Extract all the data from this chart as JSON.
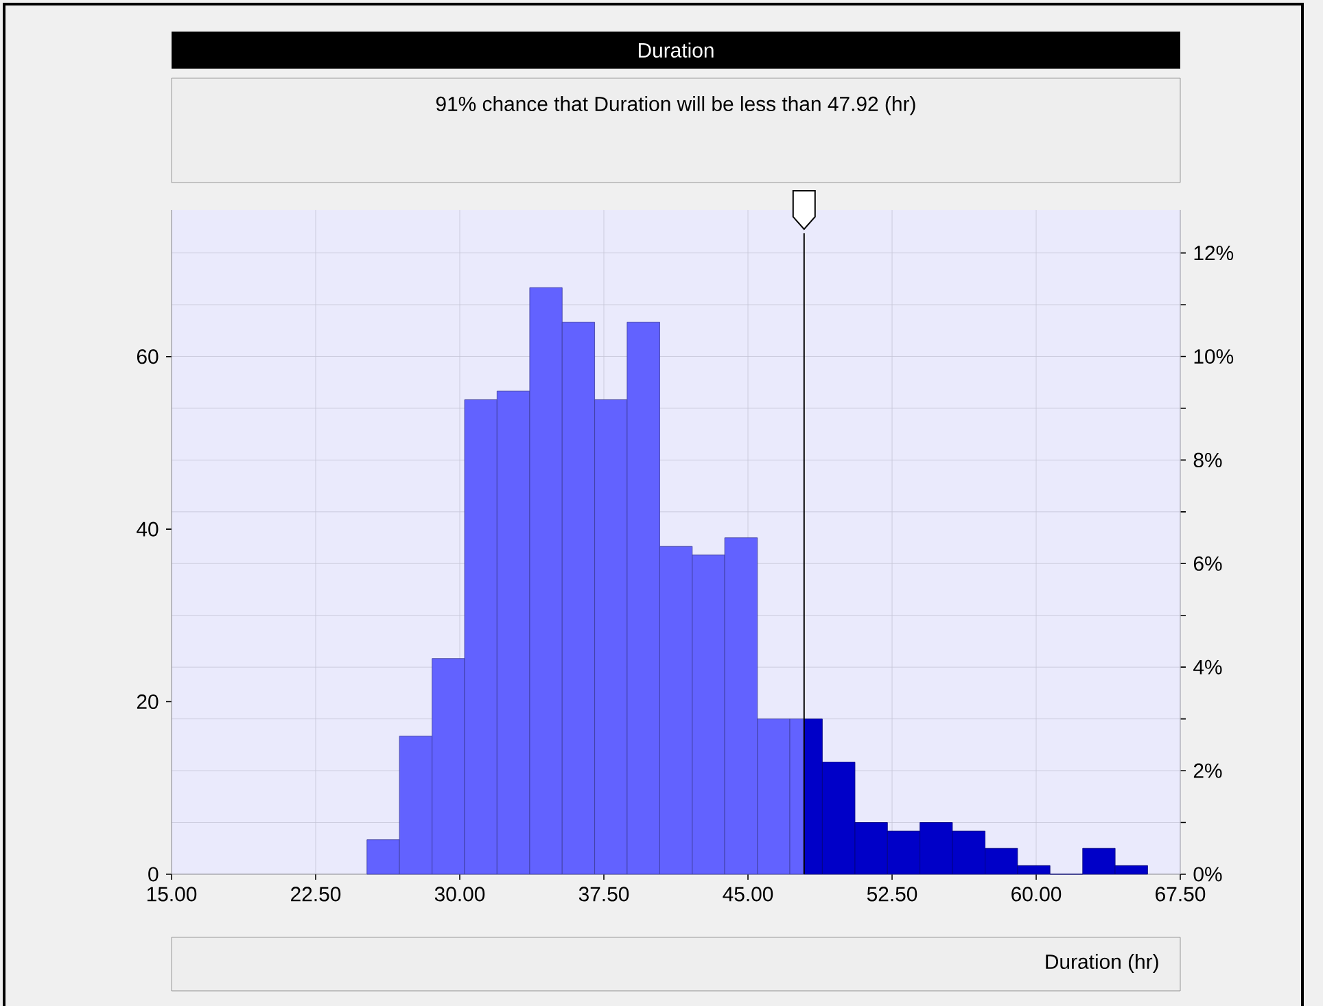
{
  "chart_data": {
    "type": "histogram",
    "title": "Duration",
    "subtitle": "91% chance that Duration will be less than 47.92 (hr)",
    "xlabel": "Duration (hr)",
    "bins": [
      25.17,
      26.86,
      28.56,
      30.25,
      31.94,
      33.64,
      35.33,
      37.02,
      38.71,
      40.41,
      42.1,
      43.79,
      45.49,
      47.18,
      47.92,
      48.87,
      50.57,
      52.26,
      53.95,
      55.64,
      57.34,
      59.03,
      60.72,
      62.42,
      64.11,
      65.8
    ],
    "values": [
      4,
      16,
      25,
      55,
      56,
      68,
      64,
      55,
      64,
      38,
      37,
      39,
      18,
      18,
      18,
      13,
      6,
      5,
      6,
      5,
      3,
      1,
      0,
      3,
      1
    ],
    "colors": [
      "#6262ff",
      "#6262ff",
      "#6262ff",
      "#6262ff",
      "#6262ff",
      "#6262ff",
      "#6262ff",
      "#6262ff",
      "#6262ff",
      "#6262ff",
      "#6262ff",
      "#6262ff",
      "#6262ff",
      "#6262ff",
      "#0000c8",
      "#0000c8",
      "#0000c8",
      "#0000c8",
      "#0000c8",
      "#0000c8",
      "#0000c8",
      "#0000c8",
      "#0000c8",
      "#0000c8",
      "#0000c8"
    ],
    "xlim": [
      15,
      67.5
    ],
    "xticks": [
      {
        "value": 15,
        "label": "15.00"
      },
      {
        "value": 22.5,
        "label": "22.50"
      },
      {
        "value": 30,
        "label": "30.00"
      },
      {
        "value": 37.5,
        "label": "37.50"
      },
      {
        "value": 45,
        "label": "45.00"
      },
      {
        "value": 52.5,
        "label": "52.50"
      },
      {
        "value": 60,
        "label": "60.00"
      },
      {
        "value": 67.5,
        "label": "67.50"
      }
    ],
    "ylim": [
      0,
      77
    ],
    "yticks": [
      0,
      20,
      40,
      60
    ],
    "y2lim": [
      0,
      12.83
    ],
    "y2ticks": [
      {
        "value": 0,
        "label": "0%"
      },
      {
        "value": 1,
        "label": null
      },
      {
        "value": 2,
        "label": "2%"
      },
      {
        "value": 3,
        "label": null
      },
      {
        "value": 4,
        "label": "4%"
      },
      {
        "value": 5,
        "label": null
      },
      {
        "value": 6,
        "label": "6%"
      },
      {
        "value": 7,
        "label": null
      },
      {
        "value": 8,
        "label": "8%"
      },
      {
        "value": 9,
        "label": null
      },
      {
        "value": 10,
        "label": "10%"
      },
      {
        "value": 11,
        "label": null
      },
      {
        "value": 12,
        "label": "12%"
      }
    ],
    "ref_lines": [
      {
        "axis": "x",
        "value": 47.92,
        "color": "#000000"
      }
    ],
    "grid": true
  }
}
